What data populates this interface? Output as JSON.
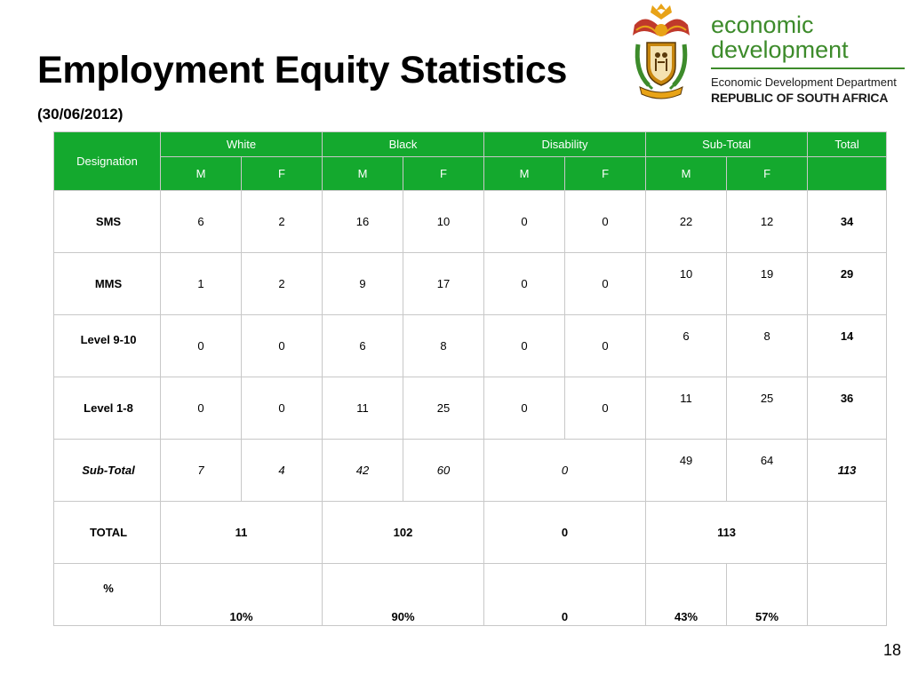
{
  "slide": {
    "title": "Employment Equity Statistics",
    "subtitle": "(30/06/2012)",
    "page_number": "18"
  },
  "logo": {
    "brand_line1": "economic",
    "brand_line2": "development",
    "department": "Economic Development Department",
    "country": "REPUBLIC OF SOUTH AFRICA",
    "brand_color": "#3d8b2b",
    "emblem": "coat-of-arms-icon"
  },
  "table": {
    "header_color": "#14a92e",
    "designation": "Designation",
    "groups": [
      "White",
      "Black",
      "Disability",
      "Sub-Total",
      "Total"
    ],
    "m": "M",
    "f": "F",
    "rows": [
      {
        "label": "SMS",
        "values": [
          "6",
          "2",
          "16",
          "10",
          "0",
          "0",
          "22",
          "12"
        ],
        "total": "34"
      },
      {
        "label": "MMS",
        "values": [
          "1",
          "2",
          "9",
          "17",
          "0",
          "0",
          "10",
          "19"
        ],
        "total": "29"
      },
      {
        "label": "Level 9-10",
        "values": [
          "0",
          "0",
          "6",
          "8",
          "0",
          "0",
          "6",
          "8"
        ],
        "total": "14"
      },
      {
        "label": "Level 1-8",
        "values": [
          "0",
          "0",
          "11",
          "25",
          "0",
          "0",
          "11",
          "25"
        ],
        "total": "36"
      }
    ],
    "subtotal": {
      "label": "Sub-Total",
      "values": [
        "7",
        "4",
        "42",
        "60",
        "0",
        "49",
        "64"
      ],
      "total": "113"
    },
    "total_row": {
      "label": "TOTAL",
      "values": [
        "11",
        "102",
        "0",
        "113"
      ]
    },
    "percent_row": {
      "label": "%",
      "values": [
        "10%",
        "90%",
        "0",
        "43%",
        "57%"
      ]
    }
  }
}
